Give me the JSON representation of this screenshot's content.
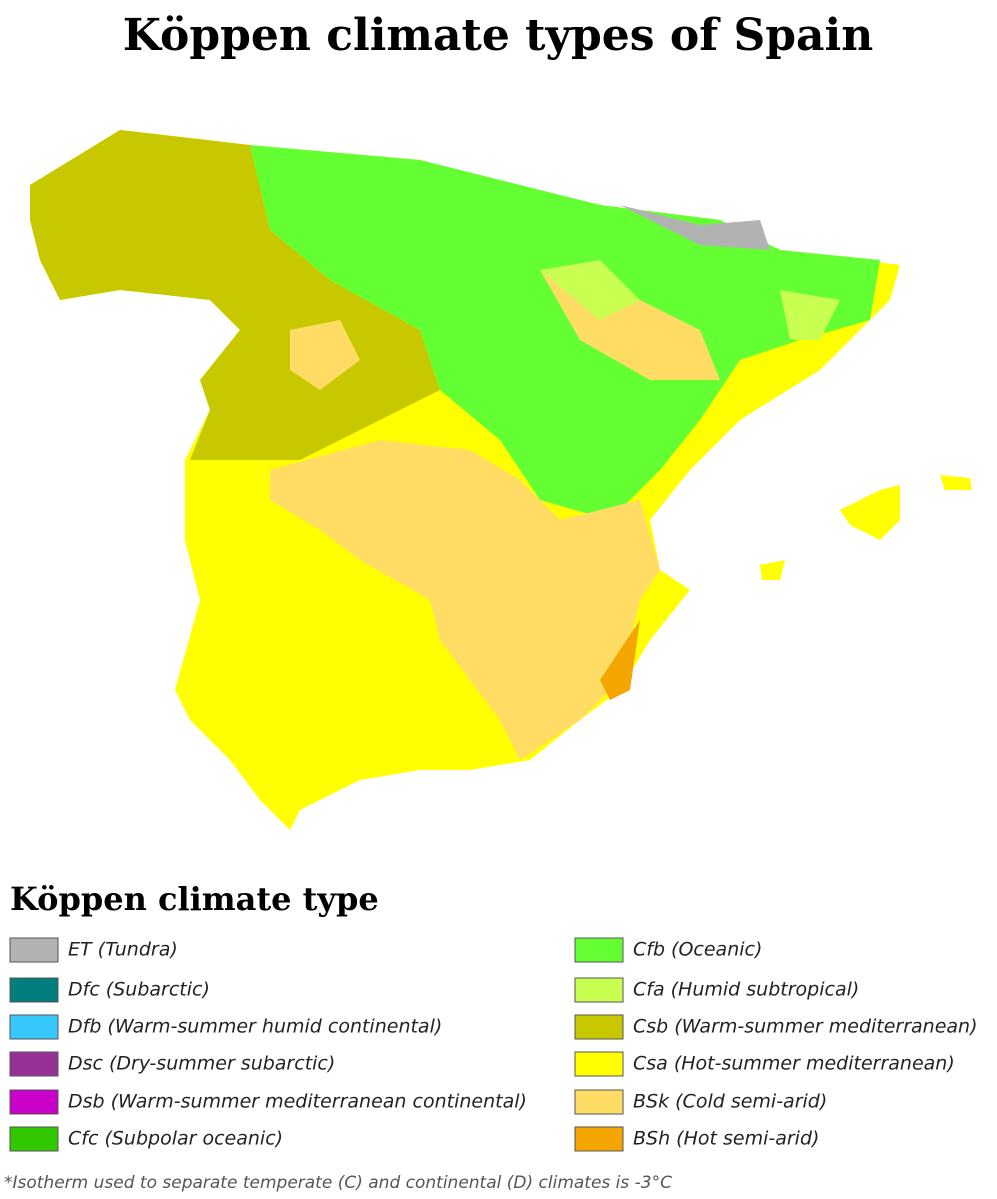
{
  "title": "Köppen climate types of Spain",
  "legend": {
    "heading": "Köppen climate type",
    "items": [
      {
        "label": "ET (Tundra)",
        "color": "#b2b2b2"
      },
      {
        "label": "Dfc (Subarctic)",
        "color": "#007d7d"
      },
      {
        "label": "Dfb (Warm-summer humid continental)",
        "color": "#37c8ff"
      },
      {
        "label": "Dsc (Dry-summer subarctic)",
        "color": "#963296"
      },
      {
        "label": "Dsb (Warm-summer mediterranean continental)",
        "color": "#c800c8"
      },
      {
        "label": "Cfc (Subpolar oceanic)",
        "color": "#32c800"
      },
      {
        "label": "Cfb (Oceanic)",
        "color": "#64ff32"
      },
      {
        "label": "Cfa (Humid subtropical)",
        "color": "#c8ff50"
      },
      {
        "label": "Csb (Warm-summer mediterranean)",
        "color": "#c8c800"
      },
      {
        "label": "Csa (Hot-summer mediterranean)",
        "color": "#ffff00"
      },
      {
        "label": "BSk (Cold semi-arid)",
        "color": "#ffdc64"
      },
      {
        "label": "BSh (Hot semi-arid)",
        "color": "#f5a500"
      }
    ]
  },
  "footnote": "*Isotherm used to separate temperate (C) and continental (D) climates is -3°C"
}
